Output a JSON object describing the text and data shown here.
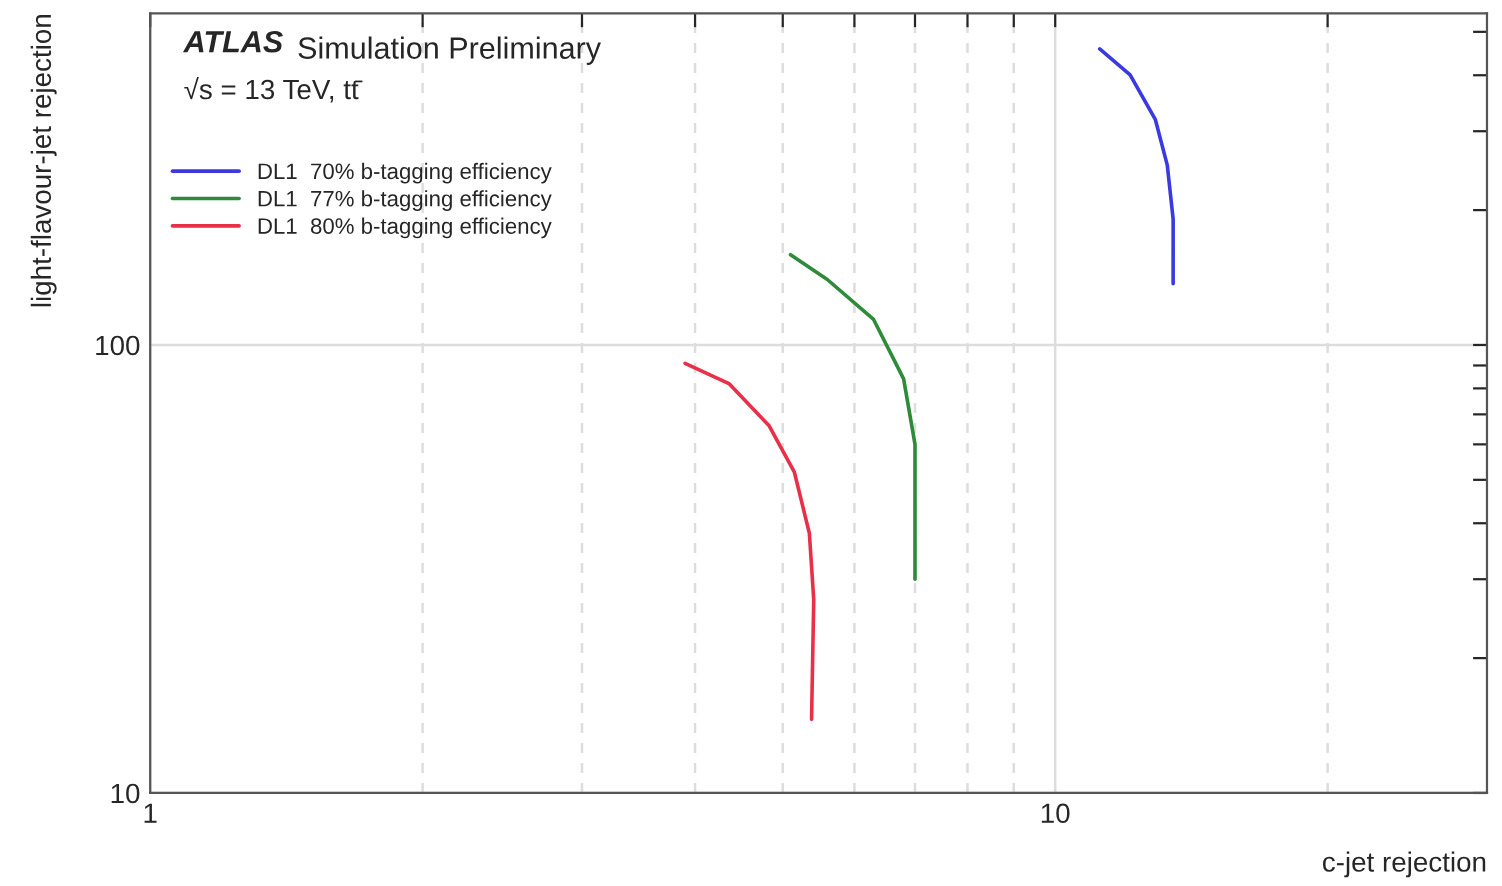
{
  "chart_data": {
    "type": "line",
    "xlabel": "c-jet rejection",
    "ylabel": "light-flavour-jet rejection",
    "annotations": [
      "ATLAS",
      "Simulation Preliminary",
      "√s = 13 TeV, tt̄"
    ],
    "log": "xy",
    "xlim": [
      1,
      30
    ],
    "ylim": [
      10,
      550
    ],
    "xticks": [
      1,
      {
        "value": 2,
        "label": null
      },
      {
        "value": 3,
        "label": null
      },
      {
        "value": 4,
        "label": null
      },
      {
        "value": 5,
        "label": null
      },
      {
        "value": 6,
        "label": null
      },
      {
        "value": 7,
        "label": null
      },
      {
        "value": 8,
        "label": null
      },
      {
        "value": 9,
        "label": null
      },
      10,
      {
        "value": 20,
        "label": null
      }
    ],
    "yticks": [
      10,
      {
        "value": 20,
        "label": null
      },
      {
        "value": 30,
        "label": null
      },
      {
        "value": 40,
        "label": null
      },
      {
        "value": 50,
        "label": null
      },
      {
        "value": 60,
        "label": null
      },
      {
        "value": 70,
        "label": null
      },
      {
        "value": 80,
        "label": null
      },
      {
        "value": 90,
        "label": null
      },
      100,
      {
        "value": 200,
        "label": null
      },
      {
        "value": 300,
        "label": null
      },
      {
        "value": 400,
        "label": null
      },
      {
        "value": 500,
        "label": null
      }
    ],
    "grid": true,
    "legend": "top left",
    "marker": "none",
    "line_style": "solid",
    "series": [
      {
        "name": "DL1  70% b-tagging efficiency",
        "color": "#3a3ae0",
        "x": [
          11.2,
          12.1,
          12.9,
          13.3,
          13.5,
          13.5
        ],
        "values": [
          458,
          401,
          319,
          252,
          191,
          137
        ]
      },
      {
        "name": "DL1  77% b-tagging efficiency",
        "color": "#2e8b3a",
        "x": [
          5.1,
          5.6,
          6.3,
          6.8,
          7.0,
          7.0,
          7.0
        ],
        "values": [
          159,
          140,
          114,
          84,
          60,
          45,
          30
        ]
      },
      {
        "name": "DL1  80% b-tagging efficiency",
        "color": "#e83048",
        "x": [
          3.9,
          4.36,
          4.83,
          5.15,
          5.35,
          5.41,
          5.38
        ],
        "values": [
          91,
          82,
          66,
          52,
          38,
          27,
          14.6
        ]
      }
    ]
  }
}
